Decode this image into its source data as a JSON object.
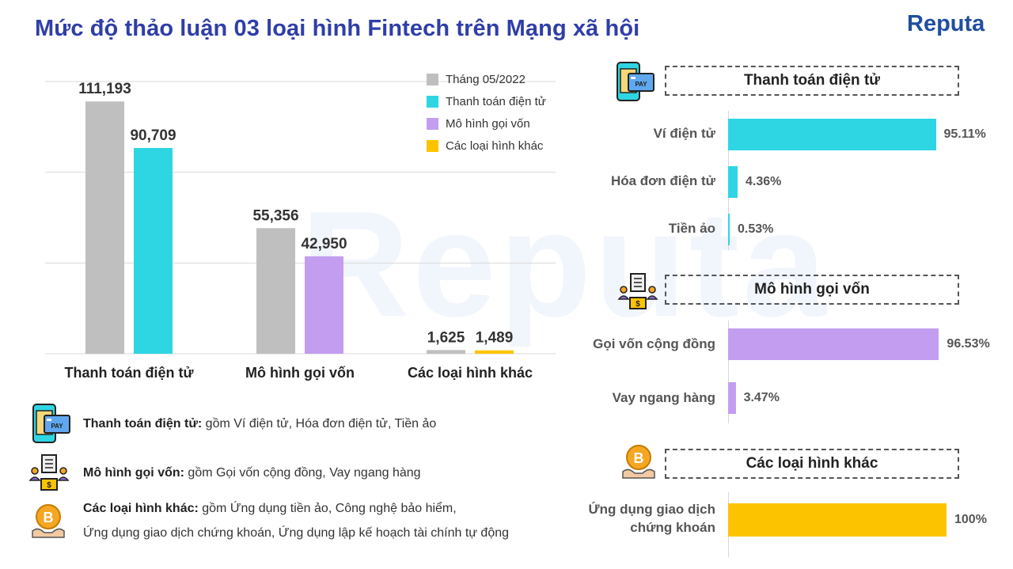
{
  "header": {
    "title": "Mức độ thảo luận 03 loại hình Fintech trên Mạng xã hội",
    "brand": "Reputa",
    "watermark": "Reputa"
  },
  "colors": {
    "gray": "#bfbfbf",
    "cyan": "#2ed6e3",
    "purple": "#c39ef0",
    "yellow": "#fcc400",
    "title": "#2f3ea8"
  },
  "chart_data": [
    {
      "type": "bar",
      "categories": [
        "Thanh toán điện tử",
        "Mô hình gọi vốn",
        "Các loại hình khác"
      ],
      "series": [
        {
          "name": "Tháng 05/2022",
          "values": [
            111193,
            55356,
            1625
          ],
          "labels": [
            "111,193",
            "55,356",
            "1,625"
          ]
        },
        {
          "name": "Thanh toán điện tử",
          "values": [
            90709,
            null,
            null
          ],
          "labels": [
            "90,709",
            "",
            ""
          ]
        },
        {
          "name": "Mô hình gọi vốn",
          "values": [
            null,
            42950,
            null
          ],
          "labels": [
            "",
            "42,950",
            ""
          ]
        },
        {
          "name": "Các loại hình khác",
          "values": [
            null,
            null,
            1489
          ],
          "labels": [
            "",
            "",
            "1,489"
          ]
        }
      ],
      "ylim": [
        0,
        120000
      ],
      "grid": true,
      "legend": "top-right"
    },
    {
      "type": "bar",
      "orientation": "horizontal",
      "title": "Thanh toán điện tử",
      "categories": [
        "Ví điện tử",
        "Hóa đơn điện tử",
        "Tiền ảo"
      ],
      "values": [
        95.11,
        4.36,
        0.53
      ],
      "labels": [
        "95.11%",
        "4.36%",
        "0.53%"
      ]
    },
    {
      "type": "bar",
      "orientation": "horizontal",
      "title": "Mô hình gọi vốn",
      "categories": [
        "Gọi vốn cộng đồng",
        "Vay ngang hàng"
      ],
      "values": [
        96.53,
        3.47
      ],
      "labels": [
        "96.53%",
        "3.47%"
      ]
    },
    {
      "type": "bar",
      "orientation": "horizontal",
      "title": "Các loại hình khác",
      "categories": [
        "Ứng dụng giao dịch chứng khoán"
      ],
      "category_lines": [
        [
          "Ứng dụng giao dịch",
          "chứng khoán"
        ]
      ],
      "values": [
        100
      ],
      "labels": [
        "100%"
      ]
    }
  ],
  "notes": [
    {
      "term": "Thanh toán điện tử:",
      "desc": " gồm Ví điện tử, Hóa đơn điện tử, Tiền ảo",
      "icon": "pay-card-icon"
    },
    {
      "term": "Mô hình gọi vốn:",
      "desc": " gồm Gọi vốn cộng đồng, Vay ngang hàng",
      "icon": "crowdfunding-icon"
    },
    {
      "term": "Các loại hình khác:",
      "desc": " gồm Ứng dụng tiền ảo, Công nghệ bảo hiểm,",
      "desc2": "Ứng dụng giao dịch chứng khoán, Ứng dụng lập kế hoạch tài chính tự động",
      "icon": "bitcoin-hand-icon"
    }
  ]
}
